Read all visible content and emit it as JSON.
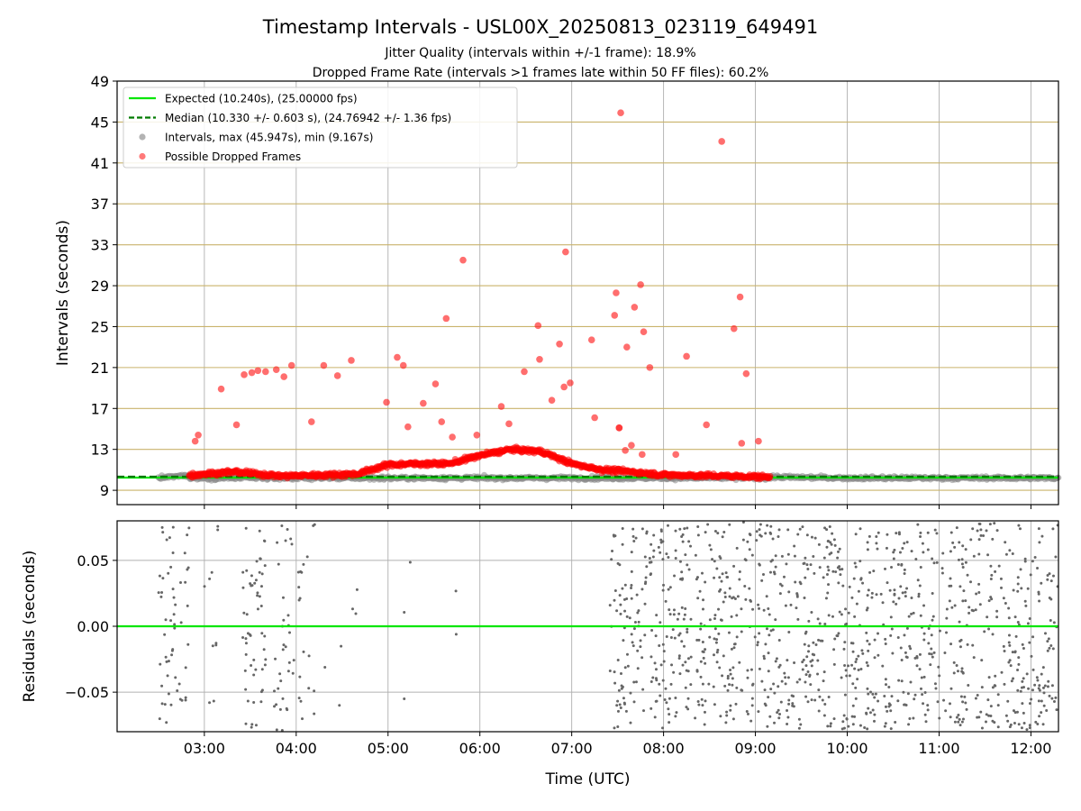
{
  "figure": {
    "title": "Timestamp Intervals - USL00X_20250813_023119_649491",
    "subtitle_1": "Jitter Quality (intervals within +/-1 frame): 18.9%",
    "subtitle_2": "Dropped Frame Rate (intervals >1 frames late within 50 FF files): 60.2%"
  },
  "chart_data": [
    {
      "type": "scatter",
      "panel": "top",
      "ylabel": "Intervals (seconds)",
      "xlabel": "",
      "x_unit": "time (UTC)",
      "xlim": [
        "02:03",
        "12:18"
      ],
      "ylim": [
        7.6,
        49
      ],
      "yticks": [
        9,
        13,
        17,
        21,
        25,
        29,
        33,
        37,
        41,
        45,
        49
      ],
      "xticks": [
        "03:00",
        "04:00",
        "05:00",
        "06:00",
        "07:00",
        "08:00",
        "09:00",
        "10:00",
        "11:00",
        "12:00"
      ],
      "grid": true,
      "horizontal_bands": {
        "color": "#c9b36b",
        "at": [
          9,
          13,
          17,
          21,
          25,
          29,
          33,
          37,
          41,
          45
        ]
      },
      "legend": {
        "placement": "top-left",
        "entries": [
          {
            "label": "Expected (10.240s), (25.00000 fps)",
            "style": "solid-line",
            "color": "#00e600"
          },
          {
            "label": "Median (10.330 +/- 0.603 s), (24.76942 +/- 1.36 fps)",
            "style": "dashed-line",
            "color": "#007a00"
          },
          {
            "label": "Intervals, max (45.947s), min (9.167s)",
            "style": "marker",
            "color": "#808080"
          },
          {
            "label": "Possible Dropped Frames",
            "style": "marker",
            "color": "#ff2020"
          }
        ]
      },
      "lines": [
        {
          "name": "Expected",
          "y": 10.24,
          "color": "#00e600",
          "style": "solid"
        },
        {
          "name": "Median",
          "y": 10.33,
          "color": "#007a00",
          "style": "dashed"
        }
      ],
      "dropped_outliers": [
        {
          "x": "02:54",
          "y": 13.8
        },
        {
          "x": "02:56",
          "y": 14.4
        },
        {
          "x": "03:11",
          "y": 18.9
        },
        {
          "x": "03:21",
          "y": 15.4
        },
        {
          "x": "03:26",
          "y": 20.3
        },
        {
          "x": "03:31",
          "y": 20.5
        },
        {
          "x": "03:35",
          "y": 20.7
        },
        {
          "x": "03:40",
          "y": 20.6
        },
        {
          "x": "03:47",
          "y": 20.8
        },
        {
          "x": "03:52",
          "y": 20.1
        },
        {
          "x": "03:57",
          "y": 21.2
        },
        {
          "x": "04:10",
          "y": 15.7
        },
        {
          "x": "04:18",
          "y": 21.2
        },
        {
          "x": "04:27",
          "y": 20.2
        },
        {
          "x": "04:36",
          "y": 21.7
        },
        {
          "x": "04:59",
          "y": 17.6
        },
        {
          "x": "05:06",
          "y": 22.0
        },
        {
          "x": "05:10",
          "y": 21.2
        },
        {
          "x": "05:13",
          "y": 15.2
        },
        {
          "x": "05:23",
          "y": 17.5
        },
        {
          "x": "05:31",
          "y": 19.4
        },
        {
          "x": "05:35",
          "y": 15.7
        },
        {
          "x": "05:38",
          "y": 25.8
        },
        {
          "x": "05:42",
          "y": 14.2
        },
        {
          "x": "05:49",
          "y": 31.5
        },
        {
          "x": "05:58",
          "y": 14.4
        },
        {
          "x": "06:14",
          "y": 17.2
        },
        {
          "x": "06:19",
          "y": 15.5
        },
        {
          "x": "06:29",
          "y": 20.6
        },
        {
          "x": "06:38",
          "y": 25.1
        },
        {
          "x": "06:39",
          "y": 21.8
        },
        {
          "x": "06:47",
          "y": 17.8
        },
        {
          "x": "06:52",
          "y": 23.3
        },
        {
          "x": "06:55",
          "y": 19.1
        },
        {
          "x": "06:56",
          "y": 32.3
        },
        {
          "x": "06:59",
          "y": 19.5
        },
        {
          "x": "07:13",
          "y": 23.7
        },
        {
          "x": "07:15",
          "y": 16.1
        },
        {
          "x": "07:28",
          "y": 26.1
        },
        {
          "x": "07:29",
          "y": 28.3
        },
        {
          "x": "07:31",
          "y": 15.1
        },
        {
          "x": "07:31",
          "y": 15.1
        },
        {
          "x": "07:32",
          "y": 45.9
        },
        {
          "x": "07:35",
          "y": 12.9
        },
        {
          "x": "07:36",
          "y": 23.0
        },
        {
          "x": "07:39",
          "y": 13.4
        },
        {
          "x": "07:41",
          "y": 26.9
        },
        {
          "x": "07:45",
          "y": 29.1
        },
        {
          "x": "07:46",
          "y": 12.5
        },
        {
          "x": "07:47",
          "y": 24.5
        },
        {
          "x": "07:51",
          "y": 21.0
        },
        {
          "x": "08:08",
          "y": 12.5
        },
        {
          "x": "08:15",
          "y": 22.1
        },
        {
          "x": "08:28",
          "y": 15.4
        },
        {
          "x": "08:38",
          "y": 43.1
        },
        {
          "x": "08:46",
          "y": 24.8
        },
        {
          "x": "08:50",
          "y": 27.9
        },
        {
          "x": "08:51",
          "y": 13.6
        },
        {
          "x": "08:54",
          "y": 20.4
        },
        {
          "x": "09:02",
          "y": 13.8
        }
      ],
      "main_band_trend": [
        {
          "x": "02:30",
          "y": 10.2
        },
        {
          "x": "03:00",
          "y": 10.6
        },
        {
          "x": "03:20",
          "y": 10.8
        },
        {
          "x": "03:50",
          "y": 10.4
        },
        {
          "x": "04:20",
          "y": 10.5
        },
        {
          "x": "04:40",
          "y": 10.6
        },
        {
          "x": "05:00",
          "y": 11.5
        },
        {
          "x": "05:20",
          "y": 11.6
        },
        {
          "x": "05:40",
          "y": 11.6
        },
        {
          "x": "06:00",
          "y": 12.4
        },
        {
          "x": "06:20",
          "y": 13.0
        },
        {
          "x": "06:40",
          "y": 12.8
        },
        {
          "x": "07:00",
          "y": 11.6
        },
        {
          "x": "07:20",
          "y": 11.0
        },
        {
          "x": "07:40",
          "y": 10.8
        },
        {
          "x": "08:00",
          "y": 10.5
        },
        {
          "x": "08:40",
          "y": 10.4
        },
        {
          "x": "09:10",
          "y": 10.3
        },
        {
          "x": "10:00",
          "y": 10.2
        },
        {
          "x": "11:00",
          "y": 10.2
        },
        {
          "x": "12:18",
          "y": 10.2
        }
      ],
      "dropped_frames_span": [
        "02:50",
        "09:10"
      ]
    },
    {
      "type": "scatter",
      "panel": "bottom",
      "ylabel": "Residuals (seconds)",
      "xlabel": "Time (UTC)",
      "xlim": [
        "02:03",
        "12:18"
      ],
      "ylim": [
        -0.08,
        0.08
      ],
      "yticks": [
        0.05,
        0.0,
        -0.05
      ],
      "ytick_labels": [
        "0.05",
        "0.00",
        "−0.05"
      ],
      "xticks": [
        "03:00",
        "04:00",
        "05:00",
        "06:00",
        "07:00",
        "08:00",
        "09:00",
        "10:00",
        "11:00",
        "12:00"
      ],
      "grid": true,
      "zero_line": {
        "y": 0.0,
        "color": "#00e600"
      },
      "point_color": "#666666",
      "point_clusters": [
        {
          "from": "02:30",
          "to": "02:50",
          "count": 55
        },
        {
          "from": "03:00",
          "to": "03:10",
          "count": 10
        },
        {
          "from": "03:25",
          "to": "03:40",
          "count": 55
        },
        {
          "from": "03:45",
          "to": "04:05",
          "count": 45
        },
        {
          "from": "04:05",
          "to": "04:20",
          "count": 8
        },
        {
          "from": "04:25",
          "to": "04:40",
          "count": 5
        },
        {
          "from": "05:10",
          "to": "05:15",
          "count": 3
        },
        {
          "from": "05:30",
          "to": "05:50",
          "count": 2
        },
        {
          "from": "07:25",
          "to": "12:18",
          "count": 1100
        }
      ]
    }
  ]
}
